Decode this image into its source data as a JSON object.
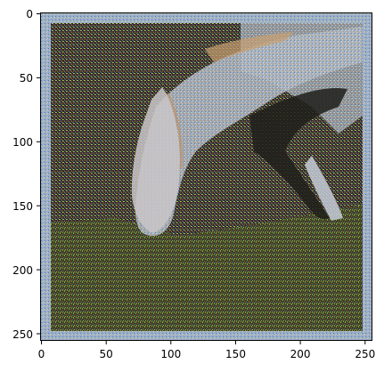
{
  "image": {
    "description_hidden": true,
    "x_axis": {
      "tick_labels": [
        "0",
        "50",
        "100",
        "150",
        "200",
        "250"
      ],
      "tick_values": [
        0,
        50,
        100,
        150,
        200,
        250
      ],
      "range": [
        0,
        256
      ]
    },
    "y_axis": {
      "tick_labels": [
        "0",
        "50",
        "100",
        "150",
        "200",
        "250"
      ],
      "tick_values": [
        0,
        50,
        100,
        150,
        200,
        250
      ],
      "range": [
        0,
        256
      ],
      "inverted": true
    },
    "colors": {
      "frame": "#000000",
      "dark_background": "#2a2a1e",
      "grass_green": "#4a5a2a",
      "horse_light": "#c8c8d0",
      "sky_blue": "#8fb4c8",
      "noise_border": "#9aaecb"
    }
  }
}
